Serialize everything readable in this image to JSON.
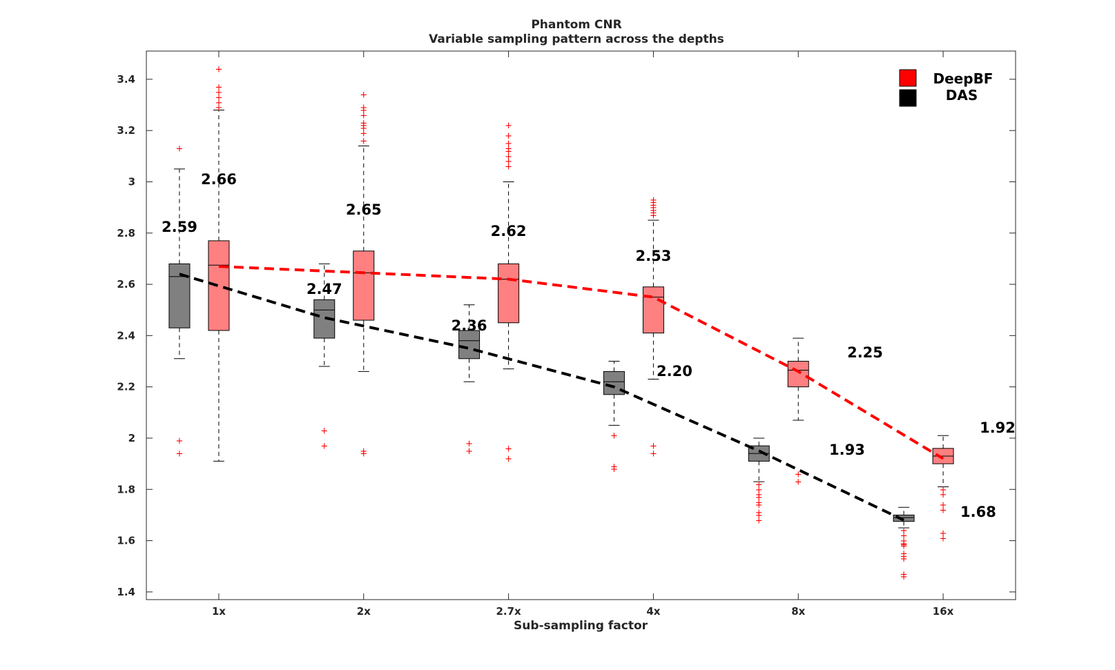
{
  "chart_data": {
    "type": "boxplot",
    "title": "Phantom CNR",
    "subtitle": "Variable sampling pattern across the depths",
    "xlabel": "Sub-sampling factor",
    "ylabel": "",
    "categories": [
      "1x",
      "2x",
      "2.7x",
      "4x",
      "8x",
      "16x"
    ],
    "ylim": [
      1.37,
      3.51
    ],
    "yticks": [
      1.4,
      1.6,
      1.8,
      2,
      2.2,
      2.4,
      2.6,
      2.8,
      3,
      3.2,
      3.4
    ],
    "ytick_labels": [
      "1.4",
      "1.6",
      "1.8",
      "2",
      "2.2",
      "2.4",
      "2.6",
      "2.8",
      "3",
      "3.2",
      "3.4"
    ],
    "legend": {
      "position": "top-right",
      "items": [
        "DeepBF",
        "DAS"
      ]
    },
    "colors": {
      "DeepBF_box": "#ff8080",
      "DAS_box": "#808080",
      "DeepBF_line": "#ff0000",
      "DAS_line": "#000000",
      "outlier": "#ff0000",
      "legend_DeepBF": "#ff0000",
      "legend_DAS": "#000000"
    },
    "series": [
      {
        "name": "DAS",
        "means": [
          2.59,
          2.47,
          2.36,
          2.2,
          1.93,
          1.68
        ],
        "mean_labels": [
          "2.59",
          "2.47",
          "2.36",
          "2.20",
          "1.93",
          "1.68"
        ],
        "line_values": [
          2.64,
          2.47,
          2.35,
          2.2,
          1.95,
          1.68
        ],
        "boxes": [
          {
            "q1": 2.43,
            "median": 2.63,
            "q3": 2.68,
            "whisker_low": 2.31,
            "whisker_high": 3.05,
            "outliers": [
              3.13,
              1.99,
              1.94
            ]
          },
          {
            "q1": 2.39,
            "median": 2.5,
            "q3": 2.54,
            "whisker_low": 2.28,
            "whisker_high": 2.68,
            "outliers": [
              2.03,
              1.97
            ]
          },
          {
            "q1": 2.31,
            "median": 2.38,
            "q3": 2.42,
            "whisker_low": 2.22,
            "whisker_high": 2.52,
            "outliers": [
              1.98,
              1.95
            ]
          },
          {
            "q1": 2.17,
            "median": 2.22,
            "q3": 2.26,
            "whisker_low": 2.05,
            "whisker_high": 2.3,
            "outliers": [
              2.01,
              1.89,
              1.88
            ]
          },
          {
            "q1": 1.91,
            "median": 1.94,
            "q3": 1.97,
            "whisker_low": 1.83,
            "whisker_high": 2.0,
            "outliers": [
              1.82,
              1.8,
              1.78,
              1.77,
              1.75,
              1.74,
              1.71,
              1.7,
              1.68
            ]
          },
          {
            "q1": 1.675,
            "median": 1.69,
            "q3": 1.7,
            "whisker_low": 1.65,
            "whisker_high": 1.73,
            "outliers": [
              1.64,
              1.62,
              1.6,
              1.59,
              1.585,
              1.58,
              1.55,
              1.54,
              1.53,
              1.47,
              1.46
            ]
          }
        ]
      },
      {
        "name": "DeepBF",
        "means": [
          2.66,
          2.65,
          2.62,
          2.53,
          2.25,
          1.92
        ],
        "mean_labels": [
          "2.66",
          "2.65",
          "2.62",
          "2.53",
          "2.25",
          "1.92"
        ],
        "line_values": [
          2.67,
          2.645,
          2.62,
          2.55,
          2.26,
          1.92
        ],
        "boxes": [
          {
            "q1": 2.42,
            "median": 2.675,
            "q3": 2.77,
            "whisker_low": 1.91,
            "whisker_high": 3.28,
            "outliers": [
              3.44,
              3.37,
              3.35,
              3.33,
              3.31,
              3.29
            ]
          },
          {
            "q1": 2.46,
            "median": 2.645,
            "q3": 2.73,
            "whisker_low": 2.26,
            "whisker_high": 3.14,
            "outliers": [
              3.34,
              3.29,
              3.28,
              3.26,
              3.23,
              3.22,
              3.21,
              3.19,
              3.16,
              1.95,
              1.94
            ]
          },
          {
            "q1": 2.45,
            "median": 2.62,
            "q3": 2.68,
            "whisker_low": 2.27,
            "whisker_high": 3.0,
            "outliers": [
              3.22,
              3.18,
              3.15,
              3.13,
              3.12,
              3.1,
              3.08,
              3.06,
              1.96,
              1.92
            ]
          },
          {
            "q1": 2.41,
            "median": 2.55,
            "q3": 2.59,
            "whisker_low": 2.23,
            "whisker_high": 2.85,
            "outliers": [
              2.93,
              2.92,
              2.91,
              2.9,
              2.89,
              2.88,
              2.87,
              1.97,
              1.94
            ]
          },
          {
            "q1": 2.2,
            "median": 2.265,
            "q3": 2.3,
            "whisker_low": 2.07,
            "whisker_high": 2.39,
            "outliers": [
              1.86,
              1.83
            ]
          },
          {
            "q1": 1.9,
            "median": 1.93,
            "q3": 1.96,
            "whisker_low": 1.81,
            "whisker_high": 2.01,
            "outliers": [
              1.8,
              1.78,
              1.74,
              1.72,
              1.63,
              1.61
            ]
          }
        ]
      }
    ]
  }
}
